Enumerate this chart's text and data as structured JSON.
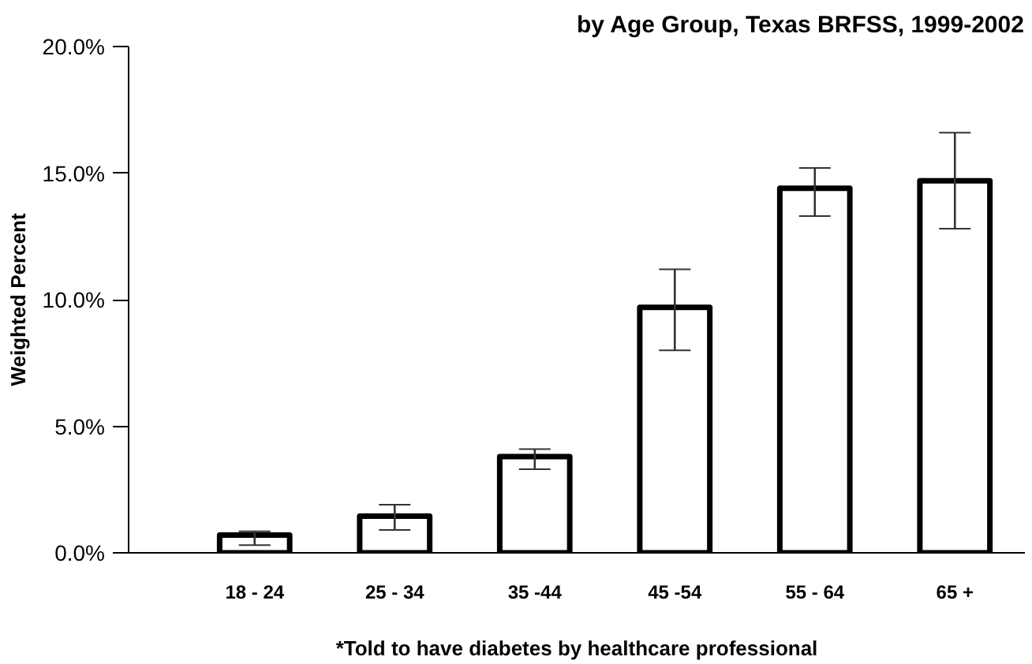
{
  "chart_data": {
    "type": "bar",
    "title": "by Age Group, Texas BRFSS, 1999-2002",
    "ylabel": "Weighted Percent",
    "xlabel": "*Told to have diabetes by healthcare professional",
    "categories": [
      "18 - 24",
      "25 - 34",
      "35 -44",
      "45 -54",
      "55 - 64",
      "65 +"
    ],
    "series": [
      {
        "color": "#ffffff",
        "values": [
          0.7,
          1.45,
          3.8,
          9.7,
          14.4,
          14.7
        ],
        "errors": [
          [
            0.3,
            0.85
          ],
          [
            0.9,
            1.9
          ],
          [
            3.3,
            4.1
          ],
          [
            8.0,
            11.2
          ],
          [
            13.3,
            15.2
          ],
          [
            12.8,
            16.6
          ]
        ]
      }
    ],
    "ylim": [
      0,
      20
    ],
    "yticks": [
      {
        "value": 0,
        "label": "0.0%"
      },
      {
        "value": 5,
        "label": "5.0%"
      },
      {
        "value": 10,
        "label": "10.0%"
      },
      {
        "value": 15,
        "label": "15.0%"
      },
      {
        "value": 20,
        "label": "20.0%"
      }
    ],
    "grid": false
  }
}
